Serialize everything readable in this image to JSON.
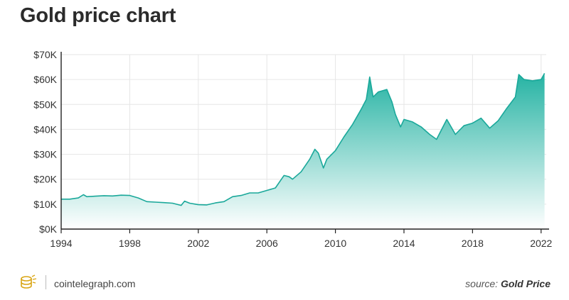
{
  "header": {
    "title": "Gold price chart"
  },
  "footer": {
    "logo_icon": "cointelegraph-logo-icon",
    "brand": "cointelegraph.com",
    "source_prefix": "source:",
    "source_name": "Gold Price"
  },
  "colors": {
    "line": "#1aa89a",
    "fill_top": "#25b3a3",
    "fill_bottom": "#ffffff",
    "grid": "#e6e6e6",
    "axis": "#222222"
  },
  "chart_data": {
    "type": "area",
    "title": "",
    "xlabel": "",
    "ylabel": "",
    "grid": true,
    "legend": "none",
    "xlim": [
      1994,
      2022.3
    ],
    "ylim": [
      0,
      70000
    ],
    "x_ticks": [
      1994,
      1998,
      2002,
      2006,
      2010,
      2014,
      2018,
      2022
    ],
    "y_ticks": [
      {
        "value": 0,
        "label": "$0K"
      },
      {
        "value": 10000,
        "label": "$10K"
      },
      {
        "value": 20000,
        "label": "$20K"
      },
      {
        "value": 30000,
        "label": "$30K"
      },
      {
        "value": 40000,
        "label": "$40K"
      },
      {
        "value": 50000,
        "label": "$50K"
      },
      {
        "value": 60000,
        "label": "$60K"
      },
      {
        "value": 70000,
        "label": "$70K"
      }
    ],
    "series": [
      {
        "x": [
          1994.0,
          1994.5,
          1995.0,
          1995.3,
          1995.5,
          1996.0,
          1996.5,
          1997.0,
          1997.5,
          1998.0,
          1998.5,
          1999.0,
          1999.5,
          2000.0,
          2000.5,
          2001.0,
          2001.2,
          2001.5,
          2002.0,
          2002.5,
          2003.0,
          2003.5,
          2004.0,
          2004.5,
          2005.0,
          2005.5,
          2006.0,
          2006.5,
          2007.0,
          2007.3,
          2007.5,
          2008.0,
          2008.5,
          2008.8,
          2009.0,
          2009.3,
          2009.5,
          2010.0,
          2010.5,
          2011.0,
          2011.5,
          2011.8,
          2012.0,
          2012.2,
          2012.5,
          2013.0,
          2013.3,
          2013.5,
          2013.8,
          2014.0,
          2014.5,
          2015.0,
          2015.5,
          2015.9,
          2016.2,
          2016.5,
          2017.0,
          2017.5,
          2018.0,
          2018.5,
          2019.0,
          2019.5,
          2020.0,
          2020.5,
          2020.7,
          2021.0,
          2021.5,
          2022.0,
          2022.2
        ],
        "values": [
          12000,
          12000,
          12500,
          13800,
          13000,
          13200,
          13400,
          13300,
          13600,
          13500,
          12500,
          11000,
          10800,
          10600,
          10400,
          9500,
          11200,
          10400,
          9800,
          9700,
          10500,
          11000,
          13000,
          13500,
          14500,
          14500,
          15500,
          16500,
          21500,
          21000,
          20000,
          23000,
          28000,
          32000,
          30500,
          24500,
          28000,
          31500,
          37000,
          42000,
          48000,
          52000,
          61000,
          53000,
          55000,
          56000,
          51000,
          46000,
          41000,
          44000,
          43000,
          41000,
          38000,
          36000,
          40000,
          44000,
          38000,
          41500,
          42500,
          44500,
          40500,
          43500,
          48500,
          53000,
          62000,
          60000,
          59500,
          60000,
          62500
        ]
      }
    ]
  }
}
